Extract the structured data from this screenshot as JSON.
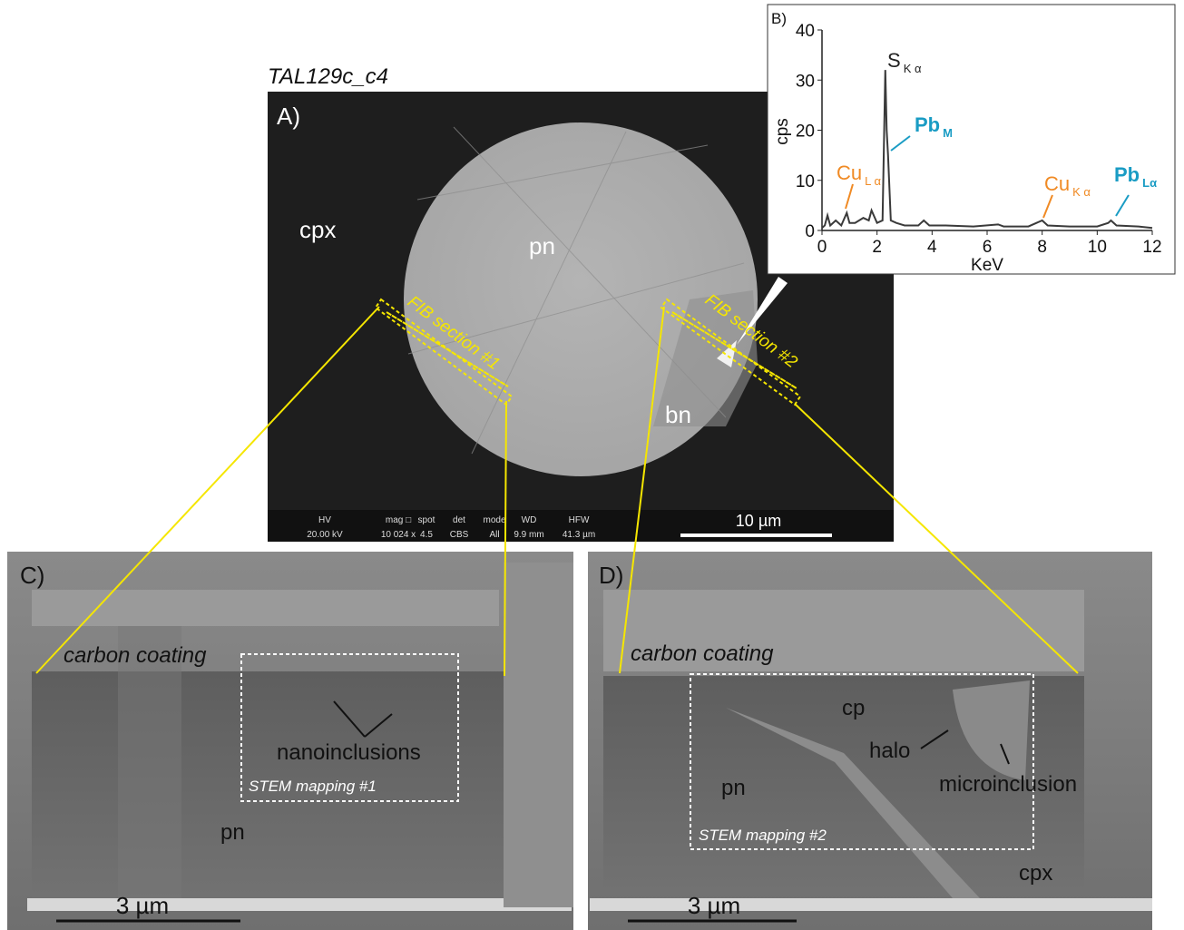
{
  "panel_a": {
    "title": "TAL129c_c4",
    "label": "A)",
    "phases": [
      "cpx",
      "pn",
      "bn"
    ],
    "sections": [
      "FIB section #1",
      "FIB section #2"
    ],
    "scale_bar": "10 µm",
    "databar": [
      {
        "label": "HV",
        "value": "20.00 kV"
      },
      {
        "label": "mag □",
        "value": "10 024 x"
      },
      {
        "label": "spot",
        "value": "4.5"
      },
      {
        "label": "det",
        "value": "CBS"
      },
      {
        "label": "mode",
        "value": "All"
      },
      {
        "label": "WD",
        "value": "9.9 mm"
      },
      {
        "label": "HFW",
        "value": "41.3 µm"
      }
    ]
  },
  "chart_data": {
    "type": "line",
    "label": "B)",
    "x_label": "KeV",
    "y_label": "cps",
    "color": "#3a3a3a",
    "x": [
      0,
      0.1,
      0.2,
      0.3,
      0.5,
      0.7,
      0.9,
      1.0,
      1.2,
      1.5,
      1.7,
      1.8,
      2.0,
      2.2,
      2.3,
      2.35,
      2.4,
      2.5,
      2.7,
      3.0,
      3.5,
      3.7,
      3.9,
      4.5,
      5.5,
      6.4,
      6.6,
      7.5,
      8.0,
      8.2,
      9.0,
      10.0,
      10.4,
      10.5,
      10.7,
      11.5,
      12
    ],
    "values": [
      0.5,
      1,
      3,
      1,
      2,
      1,
      3.5,
      1.5,
      1.5,
      2.5,
      2,
      4,
      1.5,
      2,
      32,
      20,
      15,
      2,
      1.5,
      1,
      1,
      2,
      1,
      1,
      0.8,
      1.2,
      0.8,
      0.8,
      2,
      1,
      0.8,
      0.8,
      1.5,
      2,
      1,
      0.8,
      0.5
    ],
    "xlim": [
      0,
      12
    ],
    "xticks": [
      0,
      2,
      4,
      6,
      8,
      10,
      12
    ],
    "ylim": [
      0,
      40
    ],
    "yticks": [
      0,
      10,
      20,
      30,
      40
    ],
    "annotations": [
      {
        "text": "S",
        "sub": "K α",
        "color": "#222222"
      },
      {
        "text": "Pb",
        "sub": "M",
        "color": "#1a9cc4"
      },
      {
        "text": "Cu",
        "sub": "L α",
        "color": "#f08a24"
      },
      {
        "text": "Cu",
        "sub": "K α",
        "color": "#f08a24"
      },
      {
        "text": "Pb",
        "sub": "Lα",
        "color": "#1a9cc4"
      }
    ]
  },
  "panel_c": {
    "label": "C)",
    "layer": "carbon coating",
    "arrow_label": "nanoinclusions",
    "box_label": "STEM mapping #1",
    "phase": "pn",
    "scale_bar": "3 µm"
  },
  "panel_d": {
    "label": "D)",
    "layer": "carbon coating",
    "phases": [
      "cp",
      "pn",
      "cpx"
    ],
    "arrow_labels": [
      "halo",
      "microinclusion"
    ],
    "box_label": "STEM mapping #2",
    "scale_bar": "3 µm"
  }
}
